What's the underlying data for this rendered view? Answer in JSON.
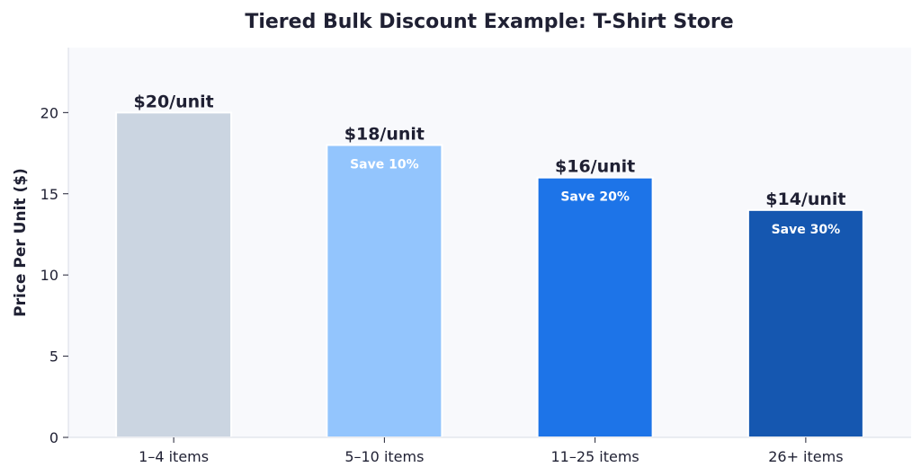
{
  "chart_data": {
    "type": "bar",
    "title": "Tiered Bulk Discount Example: T-Shirt Store",
    "xlabel": "",
    "ylabel": "Price Per Unit ($)",
    "ylim": [
      0,
      24
    ],
    "yticks": [
      0,
      5,
      10,
      15,
      20
    ],
    "grid": false,
    "categories": [
      "1–4 items",
      "5–10 items",
      "11–25 items",
      "26+ items"
    ],
    "values": [
      20,
      18,
      16,
      14
    ],
    "value_labels": [
      "$20/unit",
      "$18/unit",
      "$16/unit",
      "$14/unit"
    ],
    "discount_labels": [
      "",
      "Save 10%",
      "Save 20%",
      "Save 30%"
    ],
    "colors": [
      "#cbd5e1",
      "#93c5fd",
      "#1d74e8",
      "#1557b0"
    ],
    "plot_background": "#f8f9fc"
  }
}
